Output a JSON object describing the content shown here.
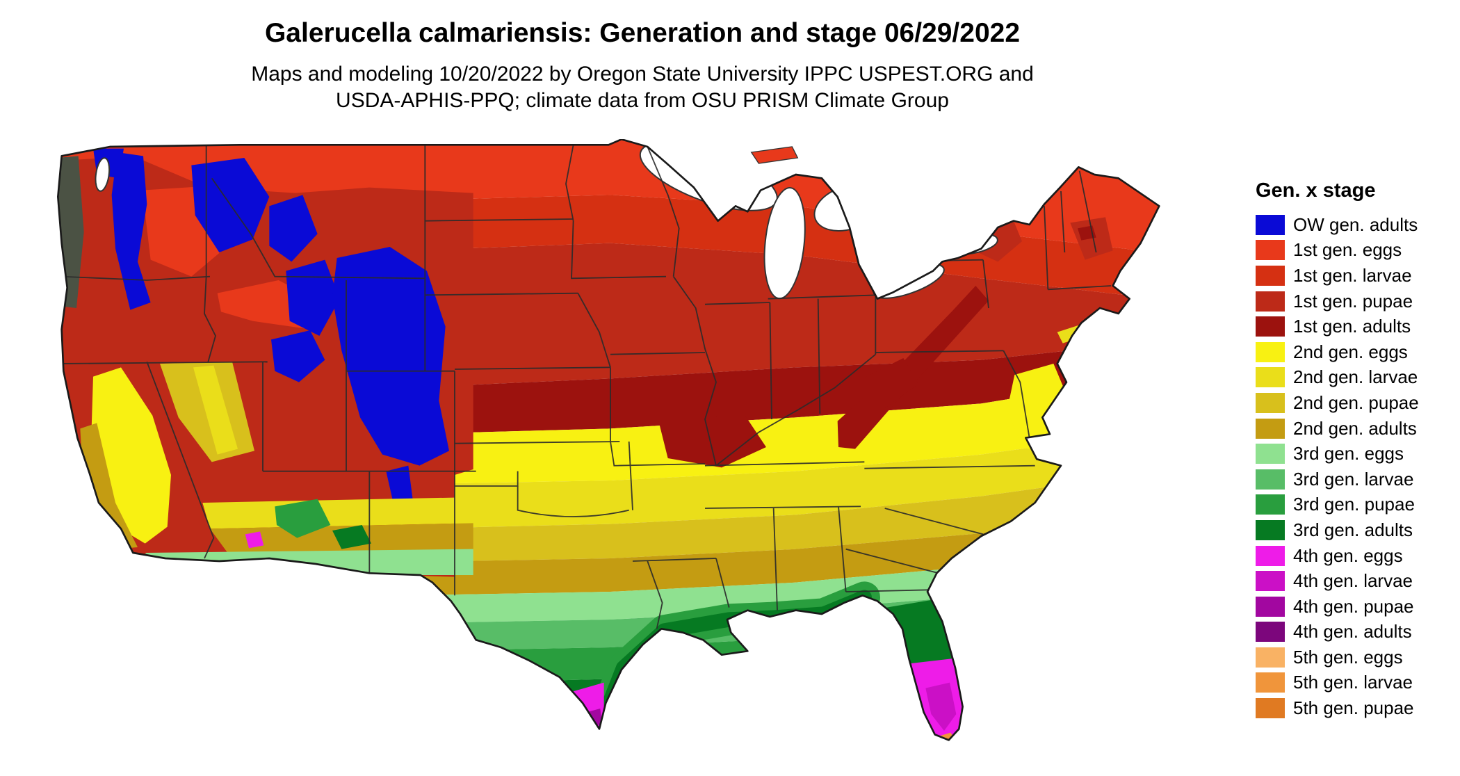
{
  "header": {
    "title": "Galerucella calmariensis: Generation and stage 06/29/2022",
    "subtitle_line1": "Maps and modeling 10/20/2022 by Oregon State University IPPC USPEST.ORG and",
    "subtitle_line2": "USDA-APHIS-PPQ; climate data from OSU PRISM Climate Group"
  },
  "legend": {
    "title": "Gen. x stage",
    "items": [
      {
        "key": "ow",
        "label": "OW gen. adults",
        "color": "#0a0ad6"
      },
      {
        "key": "g1e",
        "label": "1st gen. eggs",
        "color": "#e8391b"
      },
      {
        "key": "g1l",
        "label": "1st gen. larvae",
        "color": "#d53012"
      },
      {
        "key": "g1p",
        "label": "1st gen. pupae",
        "color": "#bd2a18"
      },
      {
        "key": "g1a",
        "label": "1st gen. adults",
        "color": "#9c120e"
      },
      {
        "key": "g2e",
        "label": "2nd gen. eggs",
        "color": "#f8f112"
      },
      {
        "key": "g2l",
        "label": "2nd gen. larvae",
        "color": "#eade1a"
      },
      {
        "key": "g2p",
        "label": "2nd gen. pupae",
        "color": "#d8c01c"
      },
      {
        "key": "g2a",
        "label": "2nd gen. adults",
        "color": "#c49c12"
      },
      {
        "key": "g3e",
        "label": "3rd gen. eggs",
        "color": "#8fe190"
      },
      {
        "key": "g3l",
        "label": "3rd gen. larvae",
        "color": "#58bd67"
      },
      {
        "key": "g3p",
        "label": "3rd gen. pupae",
        "color": "#299e3e"
      },
      {
        "key": "g3a",
        "label": "3rd gen. adults",
        "color": "#067a22"
      },
      {
        "key": "g4e",
        "label": "4th gen. eggs",
        "color": "#ee1ce8"
      },
      {
        "key": "g4l",
        "label": "4th gen. larvae",
        "color": "#cb10c6"
      },
      {
        "key": "g4p",
        "label": "4th gen. pupae",
        "color": "#a207a0"
      },
      {
        "key": "g4a",
        "label": "4th gen. adults",
        "color": "#7c067c"
      },
      {
        "key": "g5e",
        "label": "5th gen. eggs",
        "color": "#f9b264"
      },
      {
        "key": "g5l",
        "label": "5th gen. larvae",
        "color": "#f0953b"
      },
      {
        "key": "g5p",
        "label": "5th gen. pupae",
        "color": "#e07a22"
      }
    ]
  },
  "map": {
    "area": "contiguous United States choropleth raster of generation and life stage",
    "water_color": "#ffffff",
    "state_border_color": "#2b2b2b",
    "coastline_color": "#1a1a1a",
    "pnw_coast_dark": "#4b5244"
  }
}
